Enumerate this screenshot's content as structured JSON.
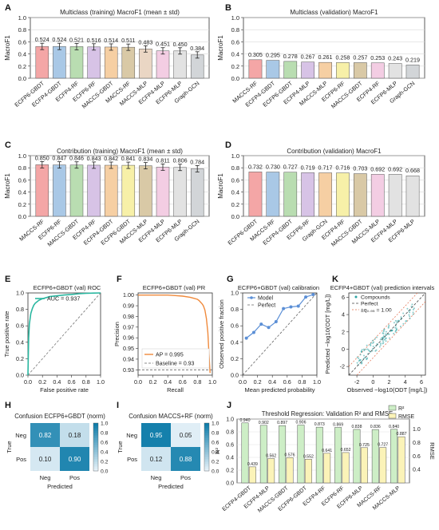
{
  "chart_data": [
    {
      "panel": "A",
      "type": "bar",
      "title": "Multiclass (training) MacroF1 (mean ± std)",
      "ylabel": "MacroF1",
      "ylim": [
        0,
        1
      ],
      "yticks": [
        0,
        0.2,
        0.4,
        0.6,
        0.8,
        1.0
      ],
      "categories": [
        "ECFP6-GBDT",
        "ECFP4-GBDT",
        "ECFP4-RF",
        "ECFP6-RF",
        "MACCS-GBDT",
        "MACCS-RF",
        "MACCS-MLP",
        "ECFP4-MLP",
        "ECFP6-MLP",
        "Graph-GCN"
      ],
      "values": [
        0.524,
        0.524,
        0.521,
        0.516,
        0.514,
        0.511,
        0.483,
        0.451,
        0.45,
        0.384
      ],
      "labels": [
        "0.524",
        "0.524",
        "0.521",
        "0.516",
        "0.514",
        "0.511",
        "0.483",
        "0.451",
        "0.450",
        "0.384"
      ],
      "colors": [
        "#f4a6a6",
        "#a9c8e6",
        "#b9ddb1",
        "#d7c3e6",
        "#f6cfa3",
        "#d9c9a6",
        "#ead6c4",
        "#f3cde3",
        "#e2e2e2",
        "#d2d5d8"
      ]
    },
    {
      "panel": "B",
      "type": "bar",
      "title": "Multiclass (validation) MacroF1",
      "ylabel": "MacroF1",
      "ylim": [
        0,
        1
      ],
      "yticks": [
        0,
        0.2,
        0.4,
        0.6,
        0.8,
        1.0
      ],
      "categories": [
        "MACCS-RF",
        "ECFP4-GBDT",
        "ECFP6-GBDT",
        "ECFP4-MLP",
        "MACCS-MLP",
        "ECFP6-RF",
        "MACCS-GBDT",
        "ECFP4-RF",
        "ECFP6-MLP",
        "Graph-GCN"
      ],
      "values": [
        0.305,
        0.295,
        0.278,
        0.267,
        0.261,
        0.258,
        0.257,
        0.253,
        0.243,
        0.219
      ],
      "labels": [
        "0.305",
        "0.295",
        "0.278",
        "0.267",
        "0.261",
        "0.258",
        "0.257",
        "0.253",
        "0.243",
        "0.219"
      ],
      "colors": [
        "#f4a6a6",
        "#a9c8e6",
        "#b9ddb1",
        "#d7c3e6",
        "#f6cfa3",
        "#f7f0a8",
        "#d9c9a6",
        "#f3cde3",
        "#e2e2e2",
        "#d2d5d8"
      ]
    },
    {
      "panel": "C",
      "type": "bar",
      "title": "Contribution (training) MacroF1 (mean ± std)",
      "ylabel": "MacroF1",
      "ylim": [
        0,
        1
      ],
      "yticks": [
        0,
        0.2,
        0.4,
        0.6,
        0.8,
        1.0
      ],
      "categories": [
        "MACCS-RF",
        "ECFP6-RF",
        "MACCS-GBDT",
        "ECFP4-RF",
        "ECFP4-GBDT",
        "ECFP6-GBDT",
        "MACCS-MLP",
        "ECFP4-MLP",
        "ECFP6-MLP",
        "Graph-GCN"
      ],
      "values": [
        0.85,
        0.847,
        0.846,
        0.843,
        0.842,
        0.841,
        0.834,
        0.811,
        0.806,
        0.784
      ],
      "labels": [
        "0.850",
        "0.847",
        "0.846",
        "0.843",
        "0.842",
        "0.841",
        "0.834",
        "0.811",
        "0.806",
        "0.784"
      ],
      "colors": [
        "#f4a6a6",
        "#a9c8e6",
        "#b9ddb1",
        "#d7c3e6",
        "#f6cfa3",
        "#f7f0a8",
        "#d9c9a6",
        "#f3cde3",
        "#e2e2e2",
        "#d2d5d8"
      ]
    },
    {
      "panel": "D",
      "type": "bar",
      "title": "Contribution (validation) MacroF1",
      "ylabel": "MacroF1",
      "ylim": [
        0,
        1
      ],
      "yticks": [
        0,
        0.2,
        0.4,
        0.6,
        0.8,
        1.0
      ],
      "categories": [
        "ECFP6-GBDT",
        "MACCS-RF",
        "ECFP4-GBDT",
        "ECFP6-RF",
        "Graph-GCN",
        "ECFP4-RF",
        "MACCS-GBDT",
        "MACCS-MLP",
        "ECFP4-MLP",
        "ECFP6-MLP"
      ],
      "values": [
        0.732,
        0.73,
        0.727,
        0.719,
        0.717,
        0.716,
        0.703,
        0.692,
        0.692,
        0.668
      ],
      "labels": [
        "0.732",
        "0.730",
        "0.727",
        "0.719",
        "0.717",
        "0.716",
        "0.703",
        "0.692",
        "0.692",
        "0.668"
      ],
      "colors": [
        "#f4a6a6",
        "#a9c8e6",
        "#b9ddb1",
        "#d7c3e6",
        "#f6cfa3",
        "#f7f0a8",
        "#d9c9a6",
        "#f3cde3",
        "#e2e2e2",
        "#e2e2e2"
      ]
    },
    {
      "panel": "E",
      "type": "line",
      "title": "ECFP6+GBDT (val) ROC",
      "xlabel": "False positive rate",
      "ylabel": "True positive rate",
      "xlim": [
        0,
        1
      ],
      "ylim": [
        0,
        1
      ],
      "ticks": [
        "0.0",
        "0.2",
        "0.4",
        "0.6",
        "0.8",
        "1.0"
      ],
      "legend": "AUC = 0.937",
      "x": [
        0,
        0.01,
        0.02,
        0.04,
        0.06,
        0.08,
        0.1,
        0.15,
        0.2,
        0.3,
        0.4,
        0.5,
        0.6,
        0.7,
        0.8,
        0.9,
        1.0
      ],
      "y": [
        0,
        0.45,
        0.62,
        0.75,
        0.81,
        0.85,
        0.875,
        0.91,
        0.93,
        0.955,
        0.965,
        0.975,
        0.982,
        0.99,
        0.995,
        0.998,
        1.0
      ]
    },
    {
      "panel": "F",
      "type": "line",
      "title": "ECFP6+GBDT (val) PR",
      "xlabel": "Recall",
      "ylabel": "Precision",
      "xlim": [
        0,
        1
      ],
      "ylim": [
        0.925,
        1.002
      ],
      "yticks": [
        0.93,
        0.94,
        0.95,
        0.96,
        0.97,
        0.98,
        0.99,
        1.0
      ],
      "xticks": [
        0,
        0.2,
        0.4,
        0.6,
        0.8,
        1.0
      ],
      "legend": [
        "AP = 0.995",
        "Baseline = 0.93"
      ],
      "baseline": 0.93,
      "x": [
        0,
        0.1,
        0.2,
        0.3,
        0.4,
        0.5,
        0.6,
        0.7,
        0.75,
        0.8,
        0.82,
        0.84,
        0.86,
        0.88,
        0.9,
        0.92,
        0.94,
        0.955,
        0.97
      ],
      "y": [
        1.0,
        1.0,
        1.0,
        1.0,
        1.0,
        0.9995,
        0.999,
        0.998,
        0.997,
        0.996,
        0.995,
        0.9935,
        0.992,
        0.99,
        0.986,
        0.978,
        0.965,
        0.945,
        0.927
      ]
    },
    {
      "panel": "G",
      "type": "line",
      "title": "ECFP6+GBDT (val) calibration",
      "xlabel": "Mean predicted probability",
      "ylabel": "Observed positive fraction",
      "xlim": [
        0,
        1
      ],
      "ylim": [
        0,
        1
      ],
      "ticks": [
        "0.0",
        "0.2",
        "0.4",
        "0.6",
        "0.8",
        "1.0"
      ],
      "legend": [
        "Model",
        "Perfect"
      ],
      "x": [
        0.05,
        0.15,
        0.25,
        0.35,
        0.45,
        0.55,
        0.65,
        0.75,
        0.85,
        0.95
      ],
      "y": [
        0.45,
        0.52,
        0.62,
        0.58,
        0.65,
        0.81,
        0.83,
        0.84,
        0.95,
        0.98
      ]
    },
    {
      "panel": "K",
      "type": "scatter",
      "title": "ECFP4+GBDT (val) prediction intervals",
      "xlabel": "Observed −log10(ODT [mg/L])",
      "ylabel": "Predicted −log10(ODT [mg/L])",
      "xlim": [
        -3,
        6.5
      ],
      "ylim": [
        -3,
        6.5
      ],
      "ticks": [
        "-2",
        "0",
        "2",
        "4",
        "6"
      ],
      "legend": [
        "Compounds",
        "Perfect",
        "±q₀.₉₅ = 1.00"
      ],
      "band": 1.0
    },
    {
      "panel": "H",
      "type": "heatmap",
      "title": "Confusion ECFP6+GBDT (norm)",
      "xlabel": "Predicted",
      "ylabel": "True",
      "rows": [
        "Neg",
        "Pos"
      ],
      "cols": [
        "Neg",
        "Pos"
      ],
      "values": [
        [
          0.82,
          0.18
        ],
        [
          0.1,
          0.9
        ]
      ],
      "cbar": [
        "0.0",
        "0.2",
        "0.4",
        "0.6",
        "0.8",
        "1.0"
      ]
    },
    {
      "panel": "I",
      "type": "heatmap",
      "title": "Confusion MACCS+RF (norm)",
      "xlabel": "Predicted",
      "ylabel": "True",
      "rows": [
        "Neg",
        "Pos"
      ],
      "cols": [
        "Neg",
        "Pos"
      ],
      "values": [
        [
          0.95,
          0.05
        ],
        [
          0.12,
          0.88
        ]
      ],
      "cbar": [
        "0.0",
        "0.2",
        "0.4",
        "0.6",
        "0.8",
        "1.0"
      ]
    },
    {
      "panel": "J",
      "type": "bar",
      "title": "Threshold Regression: Validation R² and RMSE",
      "ylabel": "R²",
      "y2label": "RMSE",
      "ylim": [
        0,
        1.0
      ],
      "yticks": [
        "0.0",
        "0.2",
        "0.4",
        "0.6",
        "0.8",
        "1.0"
      ],
      "y2ticks": [
        "0.4",
        "0.6",
        "0.8",
        "1.0"
      ],
      "y2lim": [
        0.2,
        1.15
      ],
      "categories": [
        "ECFP4-GBDT",
        "ECFP4-MLP",
        "MACCS-GBDT",
        "ECFP6-GBDT",
        "ECFP4-RF",
        "ECFP6-RF",
        "ECFP6-MLP",
        "MACCS-RF",
        "MACCS-MLP"
      ],
      "series": [
        {
          "name": "R²",
          "values": [
            0.94,
            0.902,
            0.897,
            0.906,
            0.873,
            0.869,
            0.838,
            0.836,
            0.84
          ],
          "labels": [
            "0.940",
            "0.902",
            "0.897",
            "0.906",
            "0.873",
            "0.869",
            "0.838",
            "0.836",
            "0.840"
          ],
          "color": "#cdeec6"
        },
        {
          "name": "RMSE",
          "values": [
            0.439,
            0.562,
            0.576,
            0.552,
            0.641,
            0.652,
            0.725,
            0.727,
            0.887
          ],
          "labels": [
            "0.439",
            "0.562",
            "0.576",
            "0.552",
            "0.641",
            "0.652",
            "0.725",
            "0.727",
            "0.887"
          ],
          "color": "#fbf3b8"
        }
      ]
    }
  ],
  "panel_letters": [
    "A",
    "B",
    "C",
    "D",
    "E",
    "F",
    "G",
    "K",
    "H",
    "I",
    "J"
  ]
}
